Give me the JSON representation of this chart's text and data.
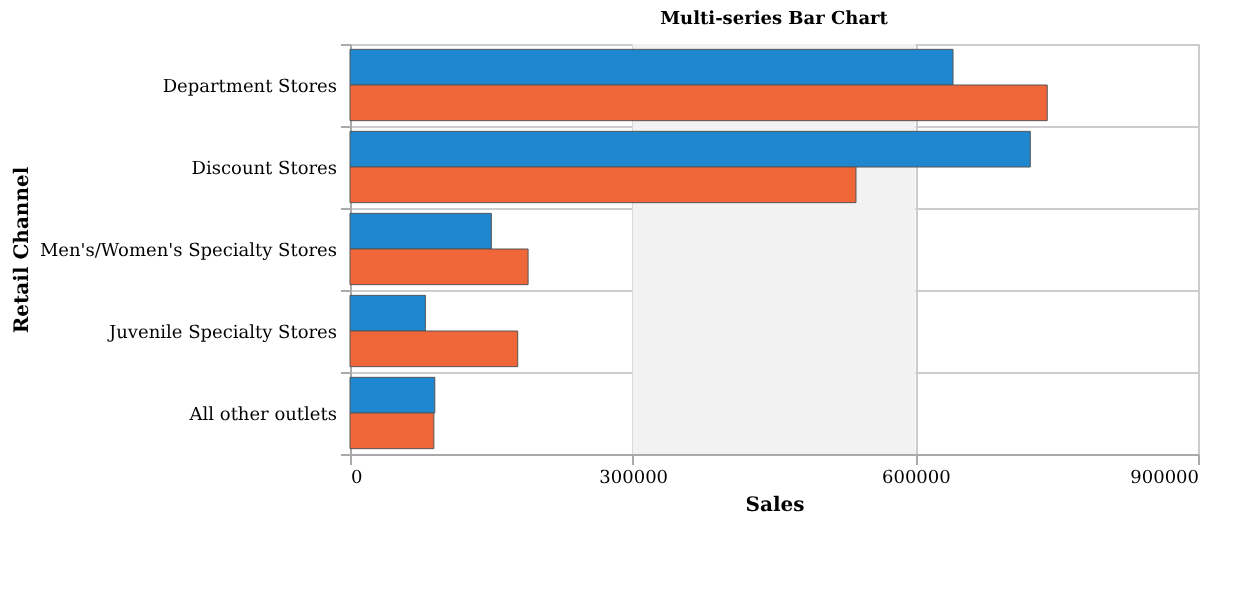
{
  "chart_data": {
    "type": "bar",
    "orientation": "horizontal",
    "title": "Multi-series Bar Chart",
    "xlabel": "Sales",
    "ylabel": "Retail Channel",
    "categories": [
      "Department Stores",
      "Discount Stores",
      "Men's/Women's Specialty Stores",
      "Juvenile Specialty Stores",
      "All other outlets"
    ],
    "series": [
      {
        "color": "#1f87d0",
        "values": [
          640000,
          722000,
          150000,
          80000,
          90000
        ]
      },
      {
        "color": "#ef6638",
        "values": [
          740000,
          537000,
          189000,
          178000,
          89000
        ]
      }
    ],
    "xlim": [
      0,
      900000
    ],
    "xticks": [
      0,
      300000,
      600000,
      900000
    ],
    "grid": true,
    "legend": false,
    "bands": [
      {
        "axis": "x",
        "from": 300000,
        "to": 600000,
        "color": "#f2f2f2"
      }
    ]
  }
}
